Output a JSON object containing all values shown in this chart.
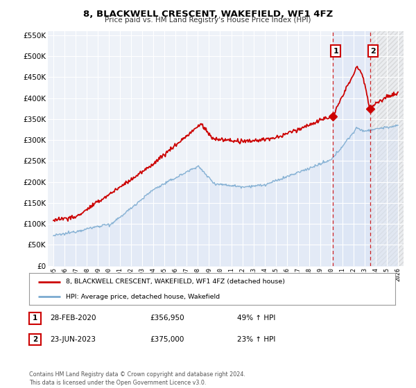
{
  "title": "8, BLACKWELL CRESCENT, WAKEFIELD, WF1 4FZ",
  "subtitle": "Price paid vs. HM Land Registry's House Price Index (HPI)",
  "background_color": "#ffffff",
  "plot_bg_color": "#eef2f8",
  "grid_color": "#ffffff",
  "hpi_fill_color": "#dae4f5",
  "red_line_color": "#cc0000",
  "blue_line_color": "#7aaad0",
  "marker1_x": 2020.15,
  "marker1_y": 356950,
  "marker2_x": 2023.48,
  "marker2_y": 375000,
  "dashed_x1": 2020.15,
  "dashed_x2": 2023.5,
  "annotation1_label": "1",
  "annotation2_label": "2",
  "legend_line1": "8, BLACKWELL CRESCENT, WAKEFIELD, WF1 4FZ (detached house)",
  "legend_line2": "HPI: Average price, detached house, Wakefield",
  "table_row1": [
    "1",
    "28-FEB-2020",
    "£356,950",
    "49% ↑ HPI"
  ],
  "table_row2": [
    "2",
    "23-JUN-2023",
    "£375,000",
    "23% ↑ HPI"
  ],
  "footer": "Contains HM Land Registry data © Crown copyright and database right 2024.\nThis data is licensed under the Open Government Licence v3.0.",
  "xmin": 1994.5,
  "xmax": 2026.5,
  "ymin": 0,
  "ymax": 560000,
  "yticks": [
    0,
    50000,
    100000,
    150000,
    200000,
    250000,
    300000,
    350000,
    400000,
    450000,
    500000,
    550000
  ],
  "ytick_labels": [
    "£0",
    "£50K",
    "£100K",
    "£150K",
    "£200K",
    "£250K",
    "£300K",
    "£350K",
    "£400K",
    "£450K",
    "£500K",
    "£550K"
  ],
  "xticks": [
    1995,
    1996,
    1997,
    1998,
    1999,
    2000,
    2001,
    2002,
    2003,
    2004,
    2005,
    2006,
    2007,
    2008,
    2009,
    2010,
    2011,
    2012,
    2013,
    2014,
    2015,
    2016,
    2017,
    2018,
    2019,
    2020,
    2021,
    2022,
    2023,
    2024,
    2025,
    2026
  ]
}
